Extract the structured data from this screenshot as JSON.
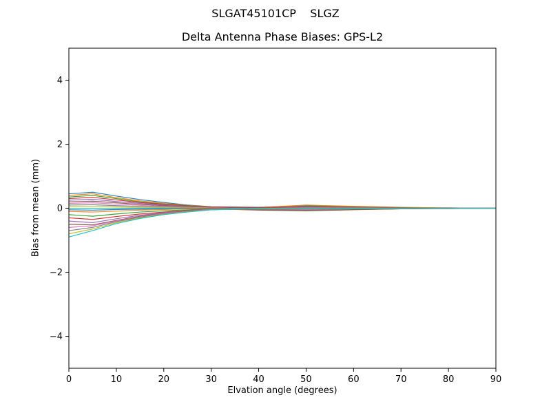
{
  "figure": {
    "title": "SLGAT45101CP    SLGZ",
    "subtitle": "Delta Antenna Phase Biases: GPS-L2"
  },
  "chart_data": {
    "type": "line",
    "title": "SLGAT45101CP    SLGZ",
    "subtitle": "Delta Antenna Phase Biases: GPS-L2",
    "xlabel": "Elvation angle (degrees)",
    "ylabel": "Bias from mean (mm)",
    "xlim": [
      0,
      90
    ],
    "ylim": [
      -5,
      5
    ],
    "x_ticks": [
      0,
      10,
      20,
      30,
      40,
      50,
      60,
      70,
      80,
      90
    ],
    "y_ticks": [
      -4,
      -2,
      0,
      2,
      4
    ],
    "grid": false,
    "legend": "none",
    "axis_color": "#000000",
    "x": [
      0,
      5,
      10,
      15,
      20,
      25,
      30,
      40,
      50,
      60,
      70,
      80,
      90
    ],
    "series": [
      {
        "name": "line-01",
        "color": "#1f77b4",
        "values": [
          0.45,
          0.5,
          0.38,
          0.27,
          0.18,
          0.1,
          0.05,
          0.03,
          0.08,
          0.05,
          0.02,
          0.01,
          0.0
        ]
      },
      {
        "name": "line-02",
        "color": "#ff7f0e",
        "values": [
          0.4,
          0.45,
          0.33,
          0.23,
          0.15,
          0.09,
          0.04,
          0.02,
          0.1,
          0.06,
          0.03,
          0.01,
          0.0
        ]
      },
      {
        "name": "line-03",
        "color": "#2ca02c",
        "values": [
          0.35,
          0.4,
          0.3,
          0.2,
          0.13,
          0.08,
          0.03,
          0.01,
          0.06,
          0.04,
          0.02,
          0.0,
          0.0
        ]
      },
      {
        "name": "line-04",
        "color": "#d62728",
        "values": [
          0.3,
          0.34,
          0.26,
          0.18,
          0.12,
          0.07,
          0.03,
          0.02,
          0.05,
          0.03,
          0.01,
          0.0,
          0.0
        ]
      },
      {
        "name": "line-05",
        "color": "#9467bd",
        "values": [
          0.25,
          0.28,
          0.21,
          0.15,
          0.1,
          0.06,
          0.02,
          0.0,
          0.04,
          0.02,
          0.01,
          0.0,
          0.0
        ]
      },
      {
        "name": "line-06",
        "color": "#8c564b",
        "values": [
          0.2,
          0.22,
          0.17,
          0.12,
          0.08,
          0.05,
          0.02,
          -0.01,
          0.03,
          0.02,
          0.0,
          0.0,
          0.0
        ]
      },
      {
        "name": "line-07",
        "color": "#e377c2",
        "values": [
          0.15,
          0.17,
          0.13,
          0.09,
          0.06,
          0.03,
          0.01,
          -0.02,
          0.02,
          0.01,
          0.0,
          0.0,
          0.0
        ]
      },
      {
        "name": "line-08",
        "color": "#7f7f7f",
        "values": [
          0.1,
          0.11,
          0.08,
          0.06,
          0.04,
          0.02,
          0.0,
          -0.03,
          0.01,
          0.0,
          0.0,
          0.0,
          0.0
        ]
      },
      {
        "name": "line-09",
        "color": "#bcbd22",
        "values": [
          0.05,
          0.05,
          0.04,
          0.03,
          0.02,
          0.01,
          0.0,
          -0.02,
          -0.02,
          -0.01,
          0.0,
          0.0,
          0.0
        ]
      },
      {
        "name": "line-10",
        "color": "#17becf",
        "values": [
          0.0,
          0.0,
          0.0,
          0.0,
          0.0,
          0.0,
          0.0,
          -0.03,
          -0.04,
          -0.02,
          -0.01,
          0.0,
          0.0
        ]
      },
      {
        "name": "line-11",
        "color": "#1f77b4",
        "values": [
          -0.05,
          -0.06,
          -0.04,
          -0.03,
          -0.02,
          -0.01,
          0.0,
          -0.04,
          -0.05,
          -0.03,
          -0.01,
          0.0,
          0.0
        ]
      },
      {
        "name": "line-12",
        "color": "#ff7f0e",
        "values": [
          -0.1,
          -0.12,
          -0.09,
          -0.06,
          -0.04,
          -0.02,
          -0.01,
          -0.05,
          -0.06,
          -0.04,
          -0.02,
          -0.01,
          0.0
        ]
      },
      {
        "name": "line-13",
        "color": "#2ca02c",
        "values": [
          -0.2,
          -0.25,
          -0.18,
          -0.12,
          -0.08,
          -0.05,
          -0.02,
          -0.06,
          -0.08,
          -0.05,
          -0.02,
          -0.01,
          0.0
        ]
      },
      {
        "name": "line-14",
        "color": "#d62728",
        "values": [
          -0.3,
          -0.35,
          -0.26,
          -0.18,
          -0.12,
          -0.07,
          -0.03,
          -0.05,
          -0.07,
          -0.04,
          -0.02,
          -0.01,
          0.0
        ]
      },
      {
        "name": "line-15",
        "color": "#9467bd",
        "values": [
          -0.4,
          -0.45,
          -0.33,
          -0.22,
          -0.14,
          -0.08,
          -0.03,
          -0.04,
          -0.06,
          -0.03,
          -0.01,
          0.0,
          0.0
        ]
      },
      {
        "name": "line-16",
        "color": "#8c564b",
        "values": [
          -0.5,
          -0.52,
          -0.38,
          -0.25,
          -0.16,
          -0.09,
          -0.04,
          -0.03,
          -0.05,
          -0.03,
          -0.01,
          0.0,
          0.0
        ]
      },
      {
        "name": "line-17",
        "color": "#e377c2",
        "values": [
          -0.6,
          -0.55,
          -0.4,
          -0.27,
          -0.17,
          -0.1,
          -0.04,
          -0.02,
          -0.04,
          -0.02,
          -0.01,
          0.0,
          0.0
        ]
      },
      {
        "name": "line-18",
        "color": "#7f7f7f",
        "values": [
          -0.7,
          -0.6,
          -0.42,
          -0.28,
          -0.18,
          -0.1,
          -0.05,
          -0.02,
          -0.03,
          -0.02,
          -0.01,
          0.0,
          0.0
        ]
      },
      {
        "name": "line-19",
        "color": "#bcbd22",
        "values": [
          -0.8,
          -0.65,
          -0.45,
          -0.3,
          -0.19,
          -0.11,
          -0.05,
          -0.01,
          -0.02,
          -0.01,
          0.0,
          0.0,
          0.0
        ]
      },
      {
        "name": "line-20",
        "color": "#17becf",
        "values": [
          -0.9,
          -0.7,
          -0.48,
          -0.32,
          -0.2,
          -0.12,
          -0.05,
          0.0,
          -0.01,
          -0.01,
          0.0,
          0.0,
          0.0
        ]
      }
    ]
  }
}
